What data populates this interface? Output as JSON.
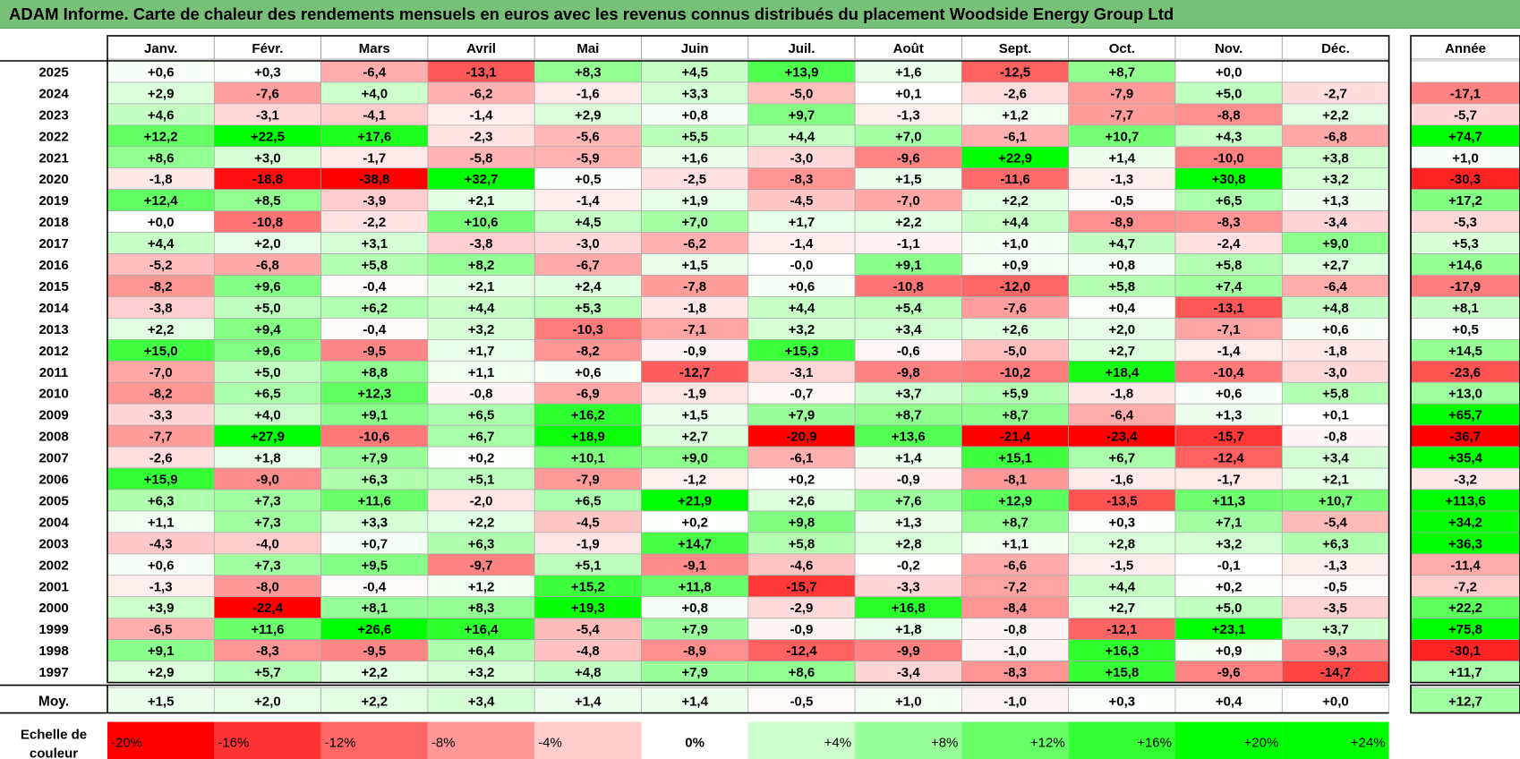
{
  "title": "ADAM Informe. Carte de chaleur des rendements mensuels en euros avec les revenus connus distribués du placement Woodside Energy Group Ltd",
  "chart_data": {
    "type": "heatmap",
    "months": [
      "Janv.",
      "Févr.",
      "Mars",
      "Avril",
      "Mai",
      "Juin",
      "Juil.",
      "Août",
      "Sept.",
      "Oct.",
      "Nov.",
      "Déc."
    ],
    "year_header": "Année",
    "rows": [
      {
        "year": "2025",
        "values": [
          "+0,6",
          "+0,3",
          "-6,4",
          "-13,1",
          "+8,3",
          "+4,5",
          "+13,9",
          "+1,6",
          "-12,5",
          "+8,7",
          "+0,0",
          ""
        ],
        "annual": ""
      },
      {
        "year": "2024",
        "values": [
          "+2,9",
          "-7,6",
          "+4,0",
          "-6,2",
          "-1,6",
          "+3,3",
          "-5,0",
          "+0,1",
          "-2,6",
          "-7,9",
          "+5,0",
          "-2,7"
        ],
        "annual": "-17,1"
      },
      {
        "year": "2023",
        "values": [
          "+4,6",
          "-3,1",
          "-4,1",
          "-1,4",
          "+2,9",
          "+0,8",
          "+9,7",
          "-1,3",
          "+1,2",
          "-7,7",
          "-8,8",
          "+2,2"
        ],
        "annual": "-5,7"
      },
      {
        "year": "2022",
        "values": [
          "+12,2",
          "+22,5",
          "+17,6",
          "-2,3",
          "-5,6",
          "+5,5",
          "+4,4",
          "+7,0",
          "-6,1",
          "+10,7",
          "+4,3",
          "-6,8"
        ],
        "annual": "+74,7"
      },
      {
        "year": "2021",
        "values": [
          "+8,6",
          "+3,0",
          "-1,7",
          "-5,8",
          "-5,9",
          "+1,6",
          "-3,0",
          "-9,6",
          "+22,9",
          "+1,4",
          "-10,0",
          "+3,8"
        ],
        "annual": "+1,0"
      },
      {
        "year": "2020",
        "values": [
          "-1,8",
          "-18,8",
          "-38,8",
          "+32,7",
          "+0,5",
          "-2,5",
          "-8,3",
          "+1,5",
          "-11,6",
          "-1,3",
          "+30,8",
          "+3,2"
        ],
        "annual": "-30,3"
      },
      {
        "year": "2019",
        "values": [
          "+12,4",
          "+8,5",
          "-3,9",
          "+2,1",
          "-1,4",
          "+1,9",
          "-4,5",
          "-7,0",
          "+2,2",
          "-0,5",
          "+6,5",
          "+1,3"
        ],
        "annual": "+17,2"
      },
      {
        "year": "2018",
        "values": [
          "+0,0",
          "-10,8",
          "-2,2",
          "+10,6",
          "+4,5",
          "+7,0",
          "+1,7",
          "+2,2",
          "+4,4",
          "-8,9",
          "-8,3",
          "-3,4"
        ],
        "annual": "-5,3"
      },
      {
        "year": "2017",
        "values": [
          "+4,4",
          "+2,0",
          "+3,1",
          "-3,8",
          "-3,0",
          "-6,2",
          "-1,4",
          "-1,1",
          "+1,0",
          "+4,7",
          "-2,4",
          "+9,0"
        ],
        "annual": "+5,3"
      },
      {
        "year": "2016",
        "values": [
          "-5,2",
          "-6,8",
          "+5,8",
          "+8,2",
          "-6,7",
          "+1,5",
          "-0,0",
          "+9,1",
          "+0,9",
          "+0,8",
          "+5,8",
          "+2,7"
        ],
        "annual": "+14,6"
      },
      {
        "year": "2015",
        "values": [
          "-8,2",
          "+9,6",
          "-0,4",
          "+2,1",
          "+2,4",
          "-7,8",
          "+0,6",
          "-10,8",
          "-12,0",
          "+5,8",
          "+7,4",
          "-6,4"
        ],
        "annual": "-17,9"
      },
      {
        "year": "2014",
        "values": [
          "-3,8",
          "+5,0",
          "+6,2",
          "+4,4",
          "+5,3",
          "-1,8",
          "+4,4",
          "+5,4",
          "-7,6",
          "+0,4",
          "-13,1",
          "+4,8"
        ],
        "annual": "+8,1"
      },
      {
        "year": "2013",
        "values": [
          "+2,2",
          "+9,4",
          "-0,4",
          "+3,2",
          "-10,3",
          "-7,1",
          "+3,2",
          "+3,4",
          "+2,6",
          "+2,0",
          "-7,1",
          "+0,6"
        ],
        "annual": "+0,5"
      },
      {
        "year": "2012",
        "values": [
          "+15,0",
          "+9,6",
          "-9,5",
          "+1,7",
          "-8,2",
          "-0,9",
          "+15,3",
          "-0,6",
          "-5,0",
          "+2,7",
          "-1,4",
          "-1,8"
        ],
        "annual": "+14,5"
      },
      {
        "year": "2011",
        "values": [
          "-7,0",
          "+5,0",
          "+8,8",
          "+1,1",
          "+0,6",
          "-12,7",
          "-3,1",
          "-9,8",
          "-10,2",
          "+18,4",
          "-10,4",
          "-3,0"
        ],
        "annual": "-23,6"
      },
      {
        "year": "2010",
        "values": [
          "-8,2",
          "+6,5",
          "+12,3",
          "-0,8",
          "-6,9",
          "-1,9",
          "-0,7",
          "+3,7",
          "+5,9",
          "-1,8",
          "+0,6",
          "+5,8"
        ],
        "annual": "+13,0"
      },
      {
        "year": "2009",
        "values": [
          "-3,3",
          "+4,0",
          "+9,1",
          "+6,5",
          "+16,2",
          "+1,5",
          "+7,9",
          "+8,7",
          "+8,7",
          "-6,4",
          "+1,3",
          "+0,1"
        ],
        "annual": "+65,7"
      },
      {
        "year": "2008",
        "values": [
          "-7,7",
          "+27,9",
          "-10,6",
          "+6,7",
          "+18,9",
          "+2,7",
          "-20,9",
          "+13,6",
          "-21,4",
          "-23,4",
          "-15,7",
          "-0,8"
        ],
        "annual": "-36,7"
      },
      {
        "year": "2007",
        "values": [
          "-2,6",
          "+1,8",
          "+7,9",
          "+0,2",
          "+10,1",
          "+9,0",
          "-6,1",
          "+1,4",
          "+15,1",
          "+6,7",
          "-12,4",
          "+3,4"
        ],
        "annual": "+35,4"
      },
      {
        "year": "2006",
        "values": [
          "+15,9",
          "-9,0",
          "+6,3",
          "+5,1",
          "-7,9",
          "-1,2",
          "+0,2",
          "-0,9",
          "-8,1",
          "-1,6",
          "-1,7",
          "+2,1"
        ],
        "annual": "-3,2"
      },
      {
        "year": "2005",
        "values": [
          "+6,3",
          "+7,3",
          "+11,6",
          "-2,0",
          "+6,5",
          "+21,9",
          "+2,6",
          "+7,6",
          "+12,9",
          "-13,5",
          "+11,3",
          "+10,7"
        ],
        "annual": "+113,6"
      },
      {
        "year": "2004",
        "values": [
          "+1,1",
          "+7,3",
          "+3,3",
          "+2,2",
          "-4,5",
          "+0,2",
          "+9,8",
          "+1,3",
          "+8,7",
          "+0,3",
          "+7,1",
          "-5,4"
        ],
        "annual": "+34,2"
      },
      {
        "year": "2003",
        "values": [
          "-4,3",
          "-4,0",
          "+0,7",
          "+6,3",
          "-1,9",
          "+14,7",
          "+5,8",
          "+2,8",
          "+1,1",
          "+2,8",
          "+3,2",
          "+6,3"
        ],
        "annual": "+36,3"
      },
      {
        "year": "2002",
        "values": [
          "+0,6",
          "+7,3",
          "+9,5",
          "-9,7",
          "+5,1",
          "-9,1",
          "-4,6",
          "-0,2",
          "-6,6",
          "-1,5",
          "-0,1",
          "-1,3"
        ],
        "annual": "-11,4"
      },
      {
        "year": "2001",
        "values": [
          "-1,3",
          "-8,0",
          "-0,4",
          "+1,2",
          "+15,2",
          "+11,8",
          "-15,7",
          "-3,3",
          "-7,2",
          "+4,4",
          "+0,2",
          "-0,5"
        ],
        "annual": "-7,2"
      },
      {
        "year": "2000",
        "values": [
          "+3,9",
          "-22,4",
          "+8,1",
          "+8,3",
          "+19,3",
          "+0,8",
          "-2,9",
          "+16,8",
          "-8,4",
          "+2,7",
          "+5,0",
          "-3,5"
        ],
        "annual": "+22,2"
      },
      {
        "year": "1999",
        "values": [
          "-6,5",
          "+11,6",
          "+26,6",
          "+16,4",
          "-5,4",
          "+7,9",
          "-0,9",
          "+1,8",
          "-0,8",
          "-12,1",
          "+23,1",
          "+3,7"
        ],
        "annual": "+75,8"
      },
      {
        "year": "1998",
        "values": [
          "+9,1",
          "-8,3",
          "-9,5",
          "+6,4",
          "-4,8",
          "-8,9",
          "-12,4",
          "-9,9",
          "-1,0",
          "+16,3",
          "+0,9",
          "-9,3"
        ],
        "annual": "-30,1"
      },
      {
        "year": "1997",
        "values": [
          "+2,9",
          "+5,7",
          "+2,2",
          "+3,2",
          "+4,8",
          "+7,9",
          "+8,6",
          "-3,4",
          "-8,3",
          "+15,8",
          "-9,6",
          "-14,7"
        ],
        "annual": "+11,7"
      }
    ],
    "average": {
      "label": "Moy.",
      "values": [
        "+1,5",
        "+2,0",
        "+2,2",
        "+3,4",
        "+1,4",
        "+1,4",
        "-0,5",
        "+1,0",
        "-1,0",
        "+0,3",
        "+0,4",
        "+0,0"
      ],
      "annual": "+12,7"
    },
    "scale": {
      "label_line1": "Echelle de",
      "label_line2": "couleur",
      "stops": [
        "-20%",
        "-16%",
        "-12%",
        "-8%",
        "-4%",
        "0%",
        "+4%",
        "+8%",
        "+12%",
        "+16%",
        "+20%",
        "+24%"
      ],
      "stop_values": [
        -20,
        -16,
        -12,
        -8,
        -4,
        0,
        4,
        8,
        12,
        16,
        20,
        24
      ]
    },
    "colors": {
      "negative_strong": "#ff0000",
      "positive_strong": "#00ff00",
      "neutral": "#ffffff",
      "title_bar": "#78bf78"
    }
  }
}
